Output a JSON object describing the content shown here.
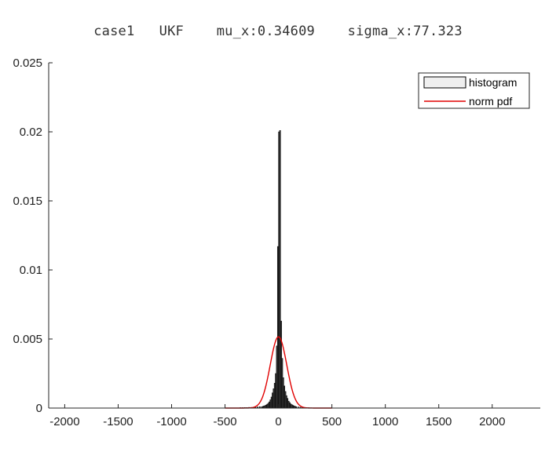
{
  "chart_data": {
    "type": "bar",
    "title": "case1   UKF    mu_x:0.34609    sigma_x:77.323",
    "xlim": [
      -2150,
      2450
    ],
    "ylim": [
      0,
      0.025
    ],
    "x_ticks": [
      -2000,
      -1500,
      -1000,
      -500,
      0,
      500,
      1000,
      1500,
      2000
    ],
    "y_ticks": [
      0,
      0.005,
      0.01,
      0.015,
      0.02,
      0.025
    ],
    "x_tick_labels": [
      "-2000",
      "-1500",
      "-1000",
      "-500",
      "0",
      "500",
      "1000",
      "1500",
      "2000"
    ],
    "y_tick_labels": [
      "0",
      "0.005",
      "0.01",
      "0.015",
      "0.02",
      "0.025"
    ],
    "grid": false,
    "legend_position": "top-right",
    "legend": [
      "histogram",
      "norm pdf"
    ],
    "histogram": {
      "name": "histogram",
      "bin_width": 10,
      "bins": [
        [
          -360,
          3e-05
        ],
        [
          -340,
          3e-05
        ],
        [
          -320,
          4e-05
        ],
        [
          -300,
          4e-05
        ],
        [
          -280,
          5e-05
        ],
        [
          -260,
          5e-05
        ],
        [
          -240,
          6e-05
        ],
        [
          -220,
          6e-05
        ],
        [
          -200,
          8e-05
        ],
        [
          -180,
          0.0001
        ],
        [
          -160,
          0.0001
        ],
        [
          -150,
          0.00012
        ],
        [
          -140,
          0.00015
        ],
        [
          -130,
          0.00018
        ],
        [
          -120,
          0.00022
        ],
        [
          -110,
          0.00028
        ],
        [
          -100,
          0.00035
        ],
        [
          -90,
          0.00045
        ],
        [
          -80,
          0.0006
        ],
        [
          -70,
          0.0008
        ],
        [
          -60,
          0.0011
        ],
        [
          -50,
          0.0014
        ],
        [
          -40,
          0.0018
        ],
        [
          -30,
          0.0025
        ],
        [
          -20,
          0.0045
        ],
        [
          -10,
          0.0117
        ],
        [
          0,
          0.02
        ],
        [
          10,
          0.0201
        ],
        [
          20,
          0.0063
        ],
        [
          30,
          0.0036
        ],
        [
          40,
          0.0022
        ],
        [
          50,
          0.0016
        ],
        [
          60,
          0.0012
        ],
        [
          70,
          0.0009
        ],
        [
          80,
          0.0007
        ],
        [
          90,
          0.0005
        ],
        [
          100,
          0.0004
        ],
        [
          110,
          0.0003
        ],
        [
          120,
          0.00025
        ],
        [
          130,
          0.0002
        ],
        [
          140,
          0.00016
        ],
        [
          150,
          0.00013
        ],
        [
          160,
          0.0001
        ],
        [
          180,
          8e-05
        ],
        [
          200,
          6e-05
        ],
        [
          220,
          5e-05
        ],
        [
          240,
          4e-05
        ],
        [
          260,
          3e-05
        ],
        [
          280,
          3e-05
        ],
        [
          300,
          2e-05
        ]
      ],
      "fill": "#3a3a3a",
      "edge": "#000000"
    },
    "series": [
      {
        "name": "norm pdf",
        "type": "line",
        "mu": 0.34609,
        "sigma": 77.323,
        "color": "#e00000"
      }
    ]
  }
}
